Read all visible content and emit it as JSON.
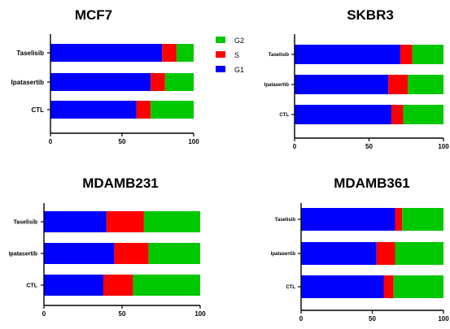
{
  "colors": {
    "G1": "#0000ff",
    "S": "#ff0000",
    "G2": "#00c800",
    "axis": "#000000"
  },
  "legend": {
    "placement": "right of MCF7 panel",
    "items": [
      "G2",
      "S",
      "G1"
    ]
  },
  "chart_data": [
    {
      "type": "bar",
      "orientation": "horizontal",
      "stacked": true,
      "title": "MCF7",
      "categories": [
        "Taselisib",
        "Ipatasertib",
        "CTL"
      ],
      "series": [
        {
          "name": "G1",
          "values": [
            78,
            70,
            60
          ]
        },
        {
          "name": "S",
          "values": [
            10,
            10,
            10
          ]
        },
        {
          "name": "G2",
          "values": [
            12,
            20,
            30
          ]
        }
      ],
      "xlim": [
        0,
        100
      ],
      "xticks": [
        0,
        50,
        100
      ],
      "grid": false
    },
    {
      "type": "bar",
      "orientation": "horizontal",
      "stacked": true,
      "title": "SKBR3",
      "categories": [
        "Taselisib",
        "Ipatasertib",
        "CTL"
      ],
      "series": [
        {
          "name": "G1",
          "values": [
            71,
            63,
            65
          ]
        },
        {
          "name": "S",
          "values": [
            8,
            13,
            8
          ]
        },
        {
          "name": "G2",
          "values": [
            21,
            24,
            27
          ]
        }
      ],
      "xlim": [
        0,
        100
      ],
      "xticks": [
        0,
        50,
        100
      ],
      "grid": false
    },
    {
      "type": "bar",
      "orientation": "horizontal",
      "stacked": true,
      "title": "MDAMB231",
      "categories": [
        "Taselisib",
        "Ipatasertib",
        "CTL"
      ],
      "series": [
        {
          "name": "G1",
          "values": [
            40,
            45,
            38
          ]
        },
        {
          "name": "S",
          "values": [
            24,
            22,
            19
          ]
        },
        {
          "name": "G2",
          "values": [
            36,
            33,
            43
          ]
        }
      ],
      "xlim": [
        0,
        100
      ],
      "xticks": [
        0,
        50,
        100
      ],
      "grid": false
    },
    {
      "type": "bar",
      "orientation": "horizontal",
      "stacked": true,
      "title": "MDAMB361",
      "categories": [
        "Taselisib",
        "Ipatasertib",
        "CTL"
      ],
      "series": [
        {
          "name": "G1",
          "values": [
            66,
            53,
            58
          ]
        },
        {
          "name": "S",
          "values": [
            5,
            13,
            7
          ]
        },
        {
          "name": "G2",
          "values": [
            29,
            34,
            35
          ]
        }
      ],
      "xlim": [
        0,
        100
      ],
      "xticks": [
        0,
        50,
        100
      ],
      "grid": false
    }
  ]
}
